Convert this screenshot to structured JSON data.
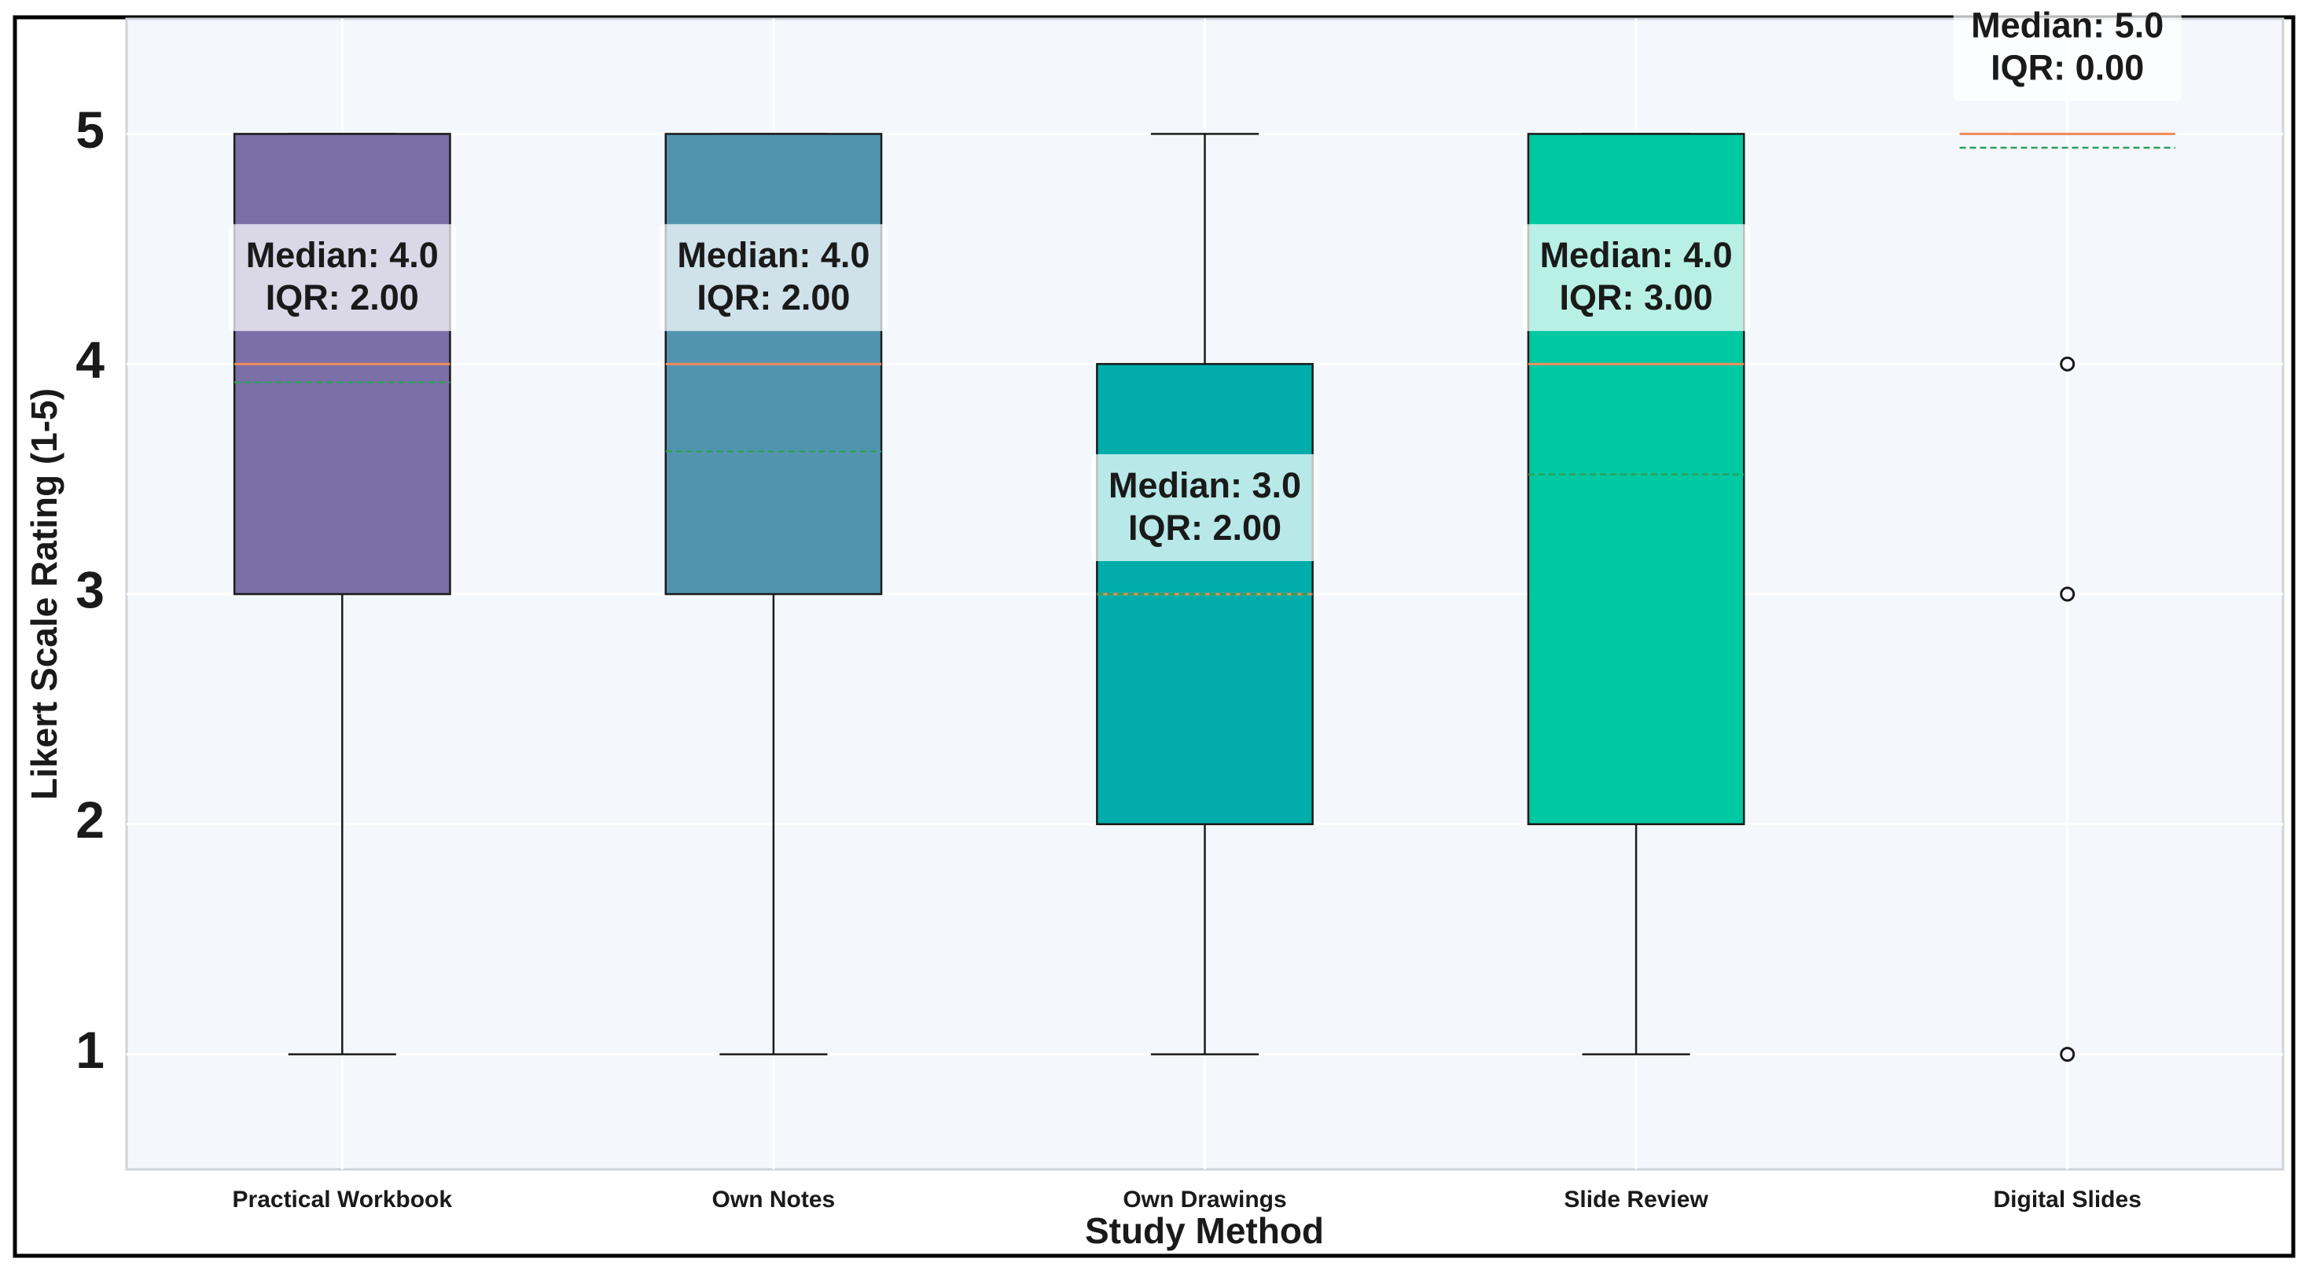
{
  "chart_data": {
    "type": "box",
    "x_label": "Study Method",
    "y_label": "Likert Scale Rating (1-5)",
    "categories": [
      "Practical Workbook",
      "Own Notes",
      "Own Drawings",
      "Slide Review",
      "Digital Slides"
    ],
    "boxes": [
      {
        "whislo": 1,
        "q1": 3,
        "median": 4,
        "q3": 5,
        "whishi": 5,
        "mean": 3.92,
        "outliers": [],
        "color": "#7b6fa8",
        "median_label": "Median: 4.0",
        "iqr": 2,
        "iqr_label": "IQR: 2.00"
      },
      {
        "whislo": 1,
        "q1": 3,
        "median": 4,
        "q3": 5,
        "whishi": 5,
        "mean": 3.62,
        "outliers": [],
        "color": "#5294b0",
        "median_label": "Median: 4.0",
        "iqr": 2,
        "iqr_label": "IQR: 2.00"
      },
      {
        "whislo": 1,
        "q1": 2,
        "median": 3,
        "q3": 4,
        "whishi": 5,
        "mean": 3.0,
        "outliers": [],
        "color": "#00adab",
        "median_label": "Median: 3.0",
        "iqr": 2,
        "iqr_label": "IQR: 2.00"
      },
      {
        "whislo": 1,
        "q1": 2,
        "median": 4,
        "q3": 5,
        "whishi": 5,
        "mean": 3.52,
        "outliers": [],
        "color": "#00c8a0",
        "median_label": "Median: 4.0",
        "iqr": 3,
        "iqr_label": "IQR: 3.00"
      },
      {
        "whislo": 5,
        "q1": 5,
        "median": 5,
        "q3": 5,
        "whishi": 5,
        "mean": 4.94,
        "outliers": [
          4,
          3,
          1
        ],
        "color": "#3fd08a",
        "median_label": "Median: 5.0",
        "iqr": 0,
        "iqr_label": "IQR: 0.00"
      }
    ],
    "median_color": "#f08c5a",
    "mean_color": "#2ca05a",
    "ylim": [
      0.5,
      5.5
    ],
    "yticks": [
      1,
      2,
      3,
      4,
      5
    ],
    "grid": true
  }
}
